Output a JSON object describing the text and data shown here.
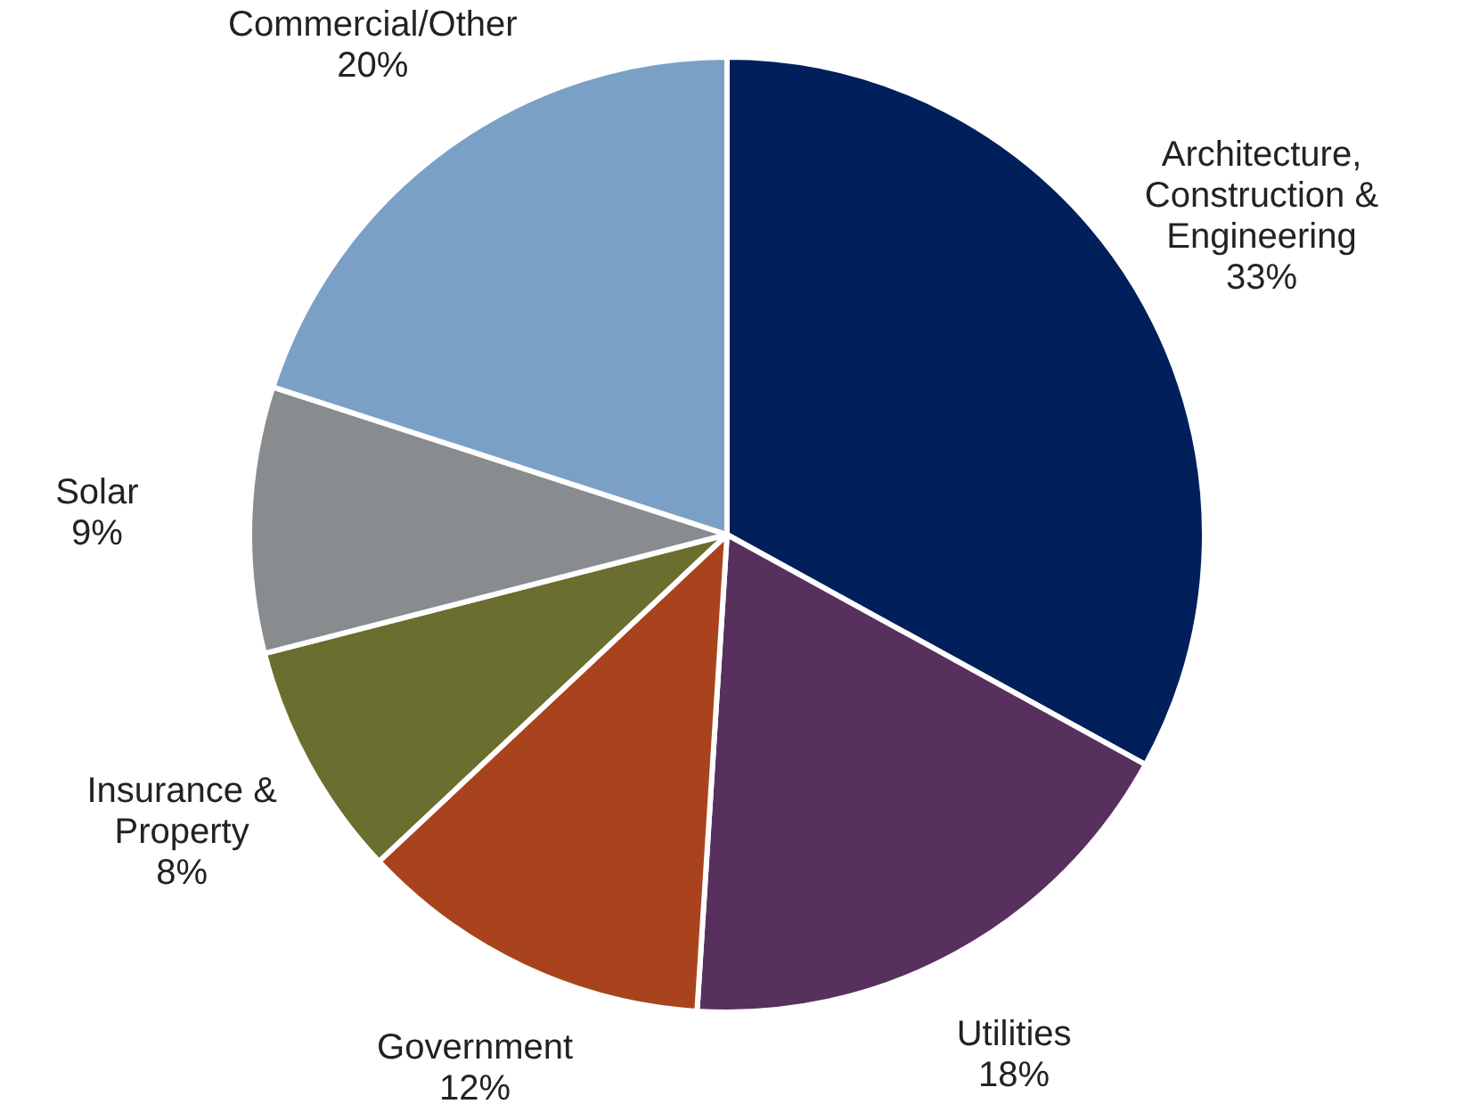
{
  "chart_data": {
    "type": "pie",
    "categories": [
      "Architecture,\nConstruction &\nEngineering",
      "Utilities",
      "Government",
      "Insurance &\nProperty",
      "Solar",
      "Commercial/Other"
    ],
    "values": [
      33,
      18,
      12,
      8,
      9,
      20
    ],
    "colors": [
      "#001f5b",
      "#58305e",
      "#a9431e",
      "#6a6e2e",
      "#898c8e",
      "#7ba0c6"
    ],
    "value_labels": [
      "33%",
      "18%",
      "12%",
      "8%",
      "9%",
      "20%"
    ]
  }
}
